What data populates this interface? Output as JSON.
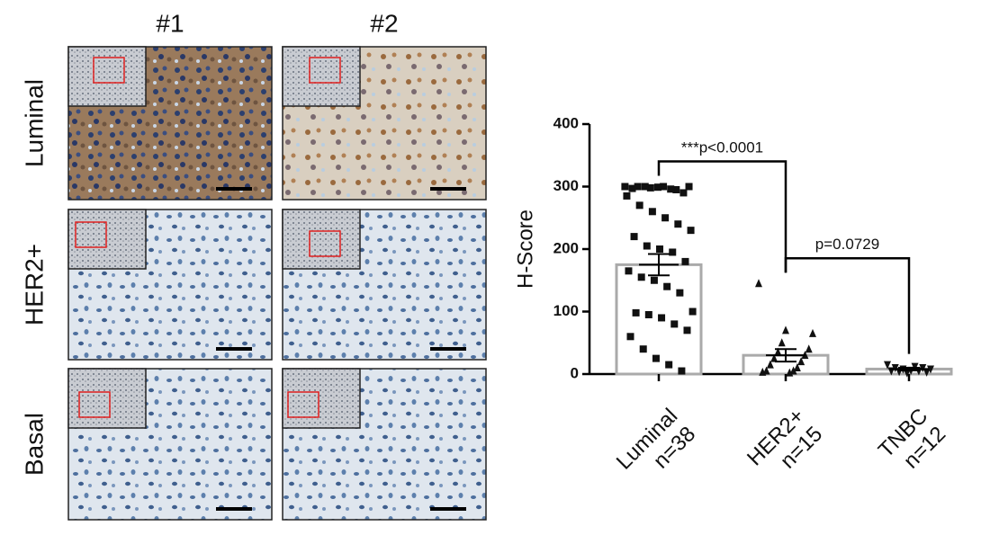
{
  "panels": {
    "columns": [
      "#1",
      "#2"
    ],
    "rows": [
      "Luminal",
      "HER2+",
      "Basal"
    ]
  },
  "chart_data": {
    "type": "bar",
    "categories": [
      "Luminal",
      "HER2+",
      "TNBC"
    ],
    "n_labels": [
      "n=38",
      "n=15",
      "n=12"
    ],
    "values": [
      175,
      30,
      8
    ],
    "errors": [
      17,
      10,
      2
    ],
    "points": [
      [
        300,
        300,
        298,
        300,
        295,
        300,
        297,
        300,
        299,
        296,
        290,
        285,
        270,
        260,
        250,
        240,
        230,
        220,
        205,
        200,
        195,
        180,
        165,
        155,
        150,
        140,
        130,
        100,
        98,
        95,
        90,
        80,
        70,
        60,
        40,
        25,
        15,
        5
      ],
      [
        145,
        70,
        65,
        50,
        40,
        35,
        30,
        25,
        20,
        15,
        10,
        5,
        5,
        3,
        2
      ],
      [
        15,
        12,
        10,
        10,
        8,
        8,
        6,
        5,
        5,
        4,
        3,
        2
      ]
    ],
    "markers": [
      "square",
      "triangle-up",
      "triangle-down"
    ],
    "color": "#aaaaaa",
    "point_color": "#111111",
    "ylabel": "H-Score",
    "ylim": [
      0,
      400
    ],
    "yticks": [
      0,
      100,
      200,
      300,
      400
    ],
    "comparisons": [
      {
        "label": "***p<0.0001",
        "from": 0,
        "to": 1
      },
      {
        "label": "p=0.0729",
        "from": 1,
        "to": 2
      }
    ]
  }
}
